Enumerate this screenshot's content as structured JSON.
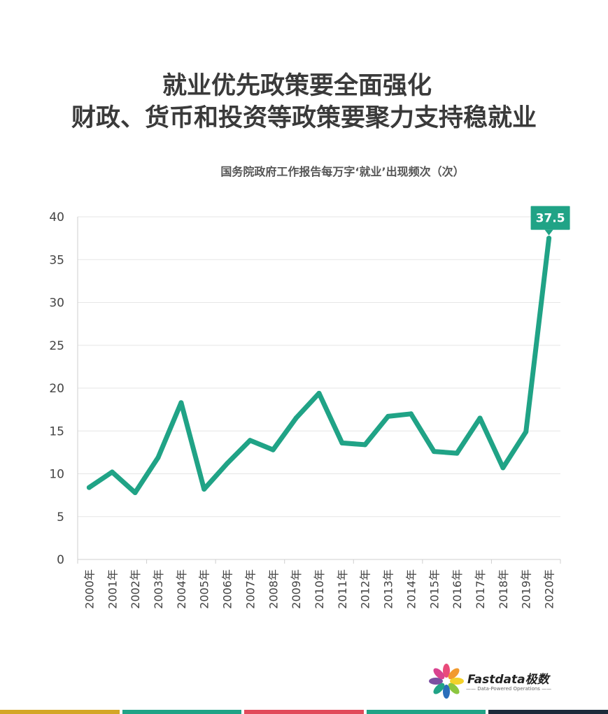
{
  "title_line1": "就业优先政策要全面强化",
  "title_line2": "财政、货币和投资等政策要聚力支持稳就业",
  "subtitle": "国务院政府工作报告每万字‘就业’出现频次（次）",
  "logo": {
    "name": "Fastdata极数",
    "tagline": "—— Data-Powered Operations ——"
  },
  "colors": {
    "line": "#20a386",
    "grid": "#e6e6e6",
    "axis": "#cfcfcf",
    "stripes": [
      "#d4a626",
      "#20a386",
      "#e24a5a",
      "#20a386",
      "#1d2a3a"
    ]
  },
  "chart_data": {
    "type": "line",
    "title": "",
    "xlabel": "",
    "ylabel": "",
    "categories": [
      "2000年",
      "2001年",
      "2002年",
      "2003年",
      "2004年",
      "2005年",
      "2006年",
      "2007年",
      "2008年",
      "2009年",
      "2010年",
      "2011年",
      "2012年",
      "2013年",
      "2014年",
      "2015年",
      "2016年",
      "2017年",
      "2018年",
      "2019年",
      "2020年"
    ],
    "values": [
      8.4,
      10.2,
      7.8,
      11.9,
      18.3,
      8.2,
      11.2,
      13.9,
      12.8,
      16.5,
      19.4,
      13.6,
      13.4,
      16.7,
      17.0,
      12.6,
      12.4,
      16.5,
      10.7,
      14.9,
      37.5
    ],
    "ylim": [
      0,
      40
    ],
    "yticks": [
      0,
      5,
      10,
      15,
      20,
      25,
      30,
      35,
      40
    ],
    "grid": true,
    "legend": "none",
    "annotation": {
      "index": 20,
      "label": "37.5"
    }
  }
}
